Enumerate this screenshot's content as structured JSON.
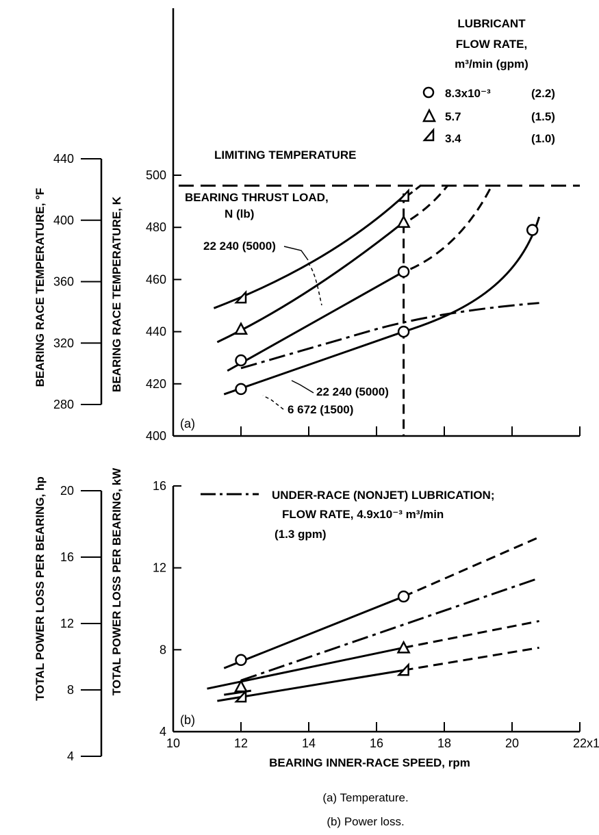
{
  "chart_data": [
    {
      "id": "a",
      "type": "line",
      "panel_label": "(a)",
      "xlim": [
        10,
        22
      ],
      "ylim": [
        400,
        500
      ],
      "x_ticks": [
        10,
        12,
        14,
        16,
        18,
        20,
        22
      ],
      "y_ticks": [
        "400",
        "420",
        "440",
        "460",
        "480",
        "500"
      ],
      "ylabel": "BEARING RACE TEMPERATURE, K",
      "y2_ticks": [
        "280",
        "320",
        "360",
        "400",
        "440"
      ],
      "y2label": "BEARING RACE TEMPERATURE, °F",
      "limiting_temperature": 496,
      "limiting_label": "LIMITING TEMPERATURE",
      "thrust_load_title": "BEARING THRUST LOAD,",
      "thrust_load_unit": "N (lb)",
      "label_22240_upper": "22 240 (5000)",
      "label_22240_lower": "22 240 (5000)",
      "label_6672": "6 672 (1500)",
      "series": [
        {
          "marker": "circle",
          "x": [
            12,
            16.8,
            20.6
          ],
          "y": [
            418,
            440,
            479
          ]
        },
        {
          "marker": "circle",
          "x": [
            12,
            16.8
          ],
          "y": [
            429,
            463
          ]
        },
        {
          "marker": "triangle",
          "x": [
            12,
            16.8
          ],
          "y": [
            441,
            482
          ]
        },
        {
          "marker": "half-triangle",
          "x": [
            12,
            16.8
          ],
          "y": [
            453,
            492
          ]
        },
        {
          "marker": "none",
          "style": "dash-dot",
          "x": [
            12,
            16,
            18,
            20.8
          ],
          "y": [
            426,
            441,
            447,
            451
          ]
        }
      ]
    },
    {
      "id": "b",
      "type": "line",
      "panel_label": "(b)",
      "xlim": [
        10,
        22
      ],
      "ylim": [
        4,
        16
      ],
      "x_ticks": [
        "10",
        "12",
        "14",
        "16",
        "18",
        "20",
        "22x10³"
      ],
      "y_ticks": [
        "4",
        "8",
        "12",
        "16"
      ],
      "ylabel": "TOTAL POWER LOSS PER BEARING, kW",
      "y2_ticks": [
        "4",
        "8",
        "12",
        "16",
        "20"
      ],
      "y2label": "TOTAL POWER LOSS PER BEARING, hp",
      "xlabel": "BEARING INNER-RACE SPEED, rpm",
      "series": [
        {
          "marker": "circle",
          "x": [
            12,
            16.8
          ],
          "y": [
            7.5,
            10.6
          ]
        },
        {
          "marker": "triangle",
          "x": [
            12,
            16.8
          ],
          "y": [
            6.2,
            8.1
          ]
        },
        {
          "marker": "half-triangle",
          "x": [
            12,
            16.8
          ],
          "y": [
            5.7,
            7.0
          ]
        },
        {
          "marker": "none",
          "style": "dash-dot",
          "x": [
            12,
            20.8
          ],
          "y": [
            6.5,
            11.5
          ]
        }
      ]
    }
  ],
  "legend": {
    "title_line1": "LUBRICANT",
    "title_line2": "FLOW RATE,",
    "title_line3": "m³/min (gpm)",
    "entries": [
      {
        "marker": "circle",
        "label": "8.3x10⁻³",
        "gpm": "(2.2)"
      },
      {
        "marker": "triangle",
        "label": "5.7",
        "gpm": "(1.5)"
      },
      {
        "marker": "half-triangle",
        "label": "3.4",
        "gpm": "(1.0)"
      }
    ]
  },
  "under_race_legend": {
    "line1": "UNDER-RACE (NONJET) LUBRICATION;",
    "line2": "FLOW RATE,  4.9x10⁻³ m³/min",
    "line3": "(1.3 gpm)"
  },
  "captions": [
    "(a) Temperature.",
    "(b) Power loss."
  ]
}
